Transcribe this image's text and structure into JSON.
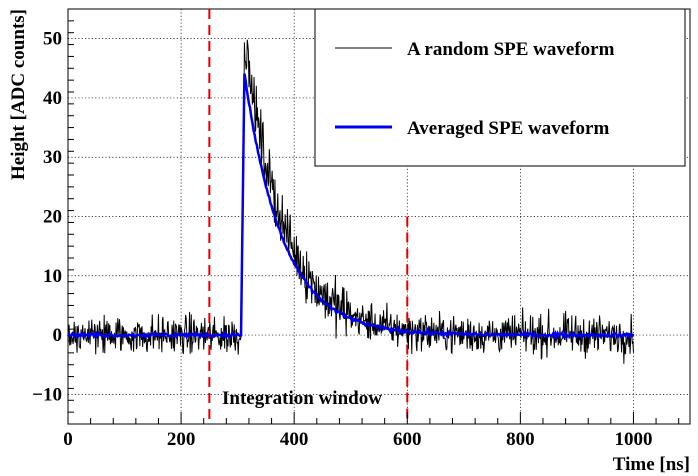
{
  "chart_data": {
    "type": "line",
    "title": "",
    "xlabel": "Time [ns]",
    "ylabel": "Height [ADC counts]",
    "xlim": [
      0,
      1100
    ],
    "ylim": [
      -15,
      55
    ],
    "xticks": [
      0,
      200,
      400,
      600,
      800,
      1000
    ],
    "xtick_labels": [
      "0",
      "200",
      "400",
      "600",
      "800",
      "1000"
    ],
    "yticks": [
      -10,
      0,
      10,
      20,
      30,
      40,
      50
    ],
    "ytick_labels": [
      "−10",
      "0",
      "10",
      "20",
      "30",
      "40",
      "50"
    ],
    "grid": true,
    "legend_position": "top-right",
    "series": [
      {
        "name": "A random SPE waveform",
        "color": "#000000",
        "baseline": 0,
        "x_range": [
          0,
          1000
        ],
        "pulse_start": 306,
        "peak_x": 312,
        "peak_y": 50,
        "decay_tau_ns": 70,
        "noise_amplitude": 2.5
      },
      {
        "name": "Averaged SPE waveform",
        "color": "#0000ee",
        "baseline": 0,
        "x_range": [
          0,
          1000
        ],
        "pulse_start": 306,
        "peak_x": 312,
        "peak_y": 44,
        "decay_tau_ns": 68
      }
    ],
    "integration_window": {
      "label": "Integration window",
      "start": 250,
      "end": 600,
      "color": "#dd0000"
    }
  }
}
